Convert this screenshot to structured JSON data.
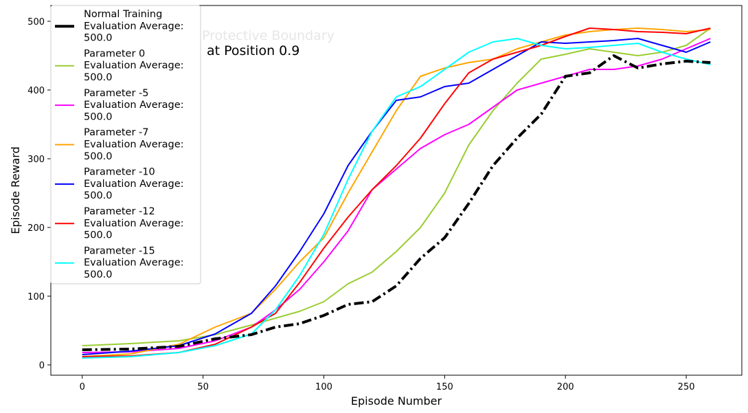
{
  "chart_data": {
    "type": "line",
    "title": "",
    "xlabel": "Episode Number",
    "ylabel": "Episode Reward",
    "xlim": [
      -13,
      273
    ],
    "ylim": [
      -15,
      523
    ],
    "xticks": [
      0,
      50,
      100,
      150,
      200,
      250
    ],
    "yticks": [
      0,
      100,
      200,
      300,
      400,
      500
    ],
    "grid": false,
    "legend_position": "upper-left",
    "annotations": [
      {
        "text": "Protective Boundary",
        "color": "#e6e6e6"
      },
      {
        "text": "at Position 0.9",
        "color": "#000000"
      }
    ],
    "series": [
      {
        "name": "Normal Training",
        "legend_lines": [
          "Normal Training",
          " Evaluation Average:",
          " 500.0"
        ],
        "color": "#000000",
        "style": "dashdot",
        "width": 4,
        "x": [
          0,
          20,
          40,
          55,
          70,
          80,
          90,
          100,
          110,
          120,
          130,
          140,
          150,
          160,
          170,
          180,
          190,
          200,
          210,
          220,
          230,
          240,
          250,
          260
        ],
        "y": [
          22,
          23,
          27,
          38,
          44,
          55,
          60,
          72,
          88,
          92,
          115,
          155,
          185,
          235,
          290,
          330,
          365,
          420,
          425,
          450,
          432,
          438,
          442,
          440
        ]
      },
      {
        "name": "Parameter 0",
        "legend_lines": [
          "Parameter 0",
          " Evaluation Average:",
          " 500.0"
        ],
        "color": "#9acd32",
        "style": "solid",
        "width": 2,
        "x": [
          0,
          20,
          40,
          55,
          70,
          80,
          90,
          100,
          110,
          120,
          130,
          140,
          150,
          160,
          170,
          180,
          190,
          200,
          210,
          220,
          230,
          240,
          250,
          260
        ],
        "y": [
          28,
          31,
          35,
          44,
          58,
          68,
          78,
          92,
          118,
          135,
          165,
          200,
          250,
          320,
          370,
          410,
          445,
          452,
          460,
          455,
          450,
          455,
          465,
          490
        ]
      },
      {
        "name": "Parameter -5",
        "legend_lines": [
          "Parameter -5",
          " Evaluation Average:",
          " 500.0"
        ],
        "color": "#ff00ff",
        "style": "solid",
        "width": 2,
        "x": [
          0,
          20,
          40,
          55,
          70,
          80,
          90,
          100,
          110,
          120,
          130,
          140,
          150,
          160,
          170,
          180,
          190,
          200,
          210,
          220,
          230,
          240,
          250,
          260
        ],
        "y": [
          18,
          19,
          24,
          35,
          55,
          80,
          110,
          150,
          195,
          255,
          285,
          315,
          335,
          350,
          375,
          400,
          410,
          420,
          430,
          430,
          435,
          445,
          460,
          475
        ]
      },
      {
        "name": "Parameter -7",
        "legend_lines": [
          "Parameter -7",
          " Evaluation Average:",
          " 500.0"
        ],
        "color": "#ffa500",
        "style": "solid",
        "width": 2,
        "x": [
          0,
          20,
          40,
          55,
          70,
          80,
          90,
          100,
          110,
          120,
          130,
          140,
          150,
          160,
          170,
          180,
          190,
          200,
          210,
          220,
          230,
          240,
          250,
          260
        ],
        "y": [
          12,
          16,
          30,
          55,
          75,
          110,
          150,
          185,
          250,
          310,
          370,
          420,
          432,
          440,
          445,
          460,
          470,
          480,
          485,
          488,
          490,
          488,
          485,
          488
        ]
      },
      {
        "name": "Parameter -10",
        "legend_lines": [
          "Parameter -10",
          " Evaluation Average:",
          " 500.0"
        ],
        "color": "#0000ff",
        "style": "solid",
        "width": 2,
        "x": [
          0,
          20,
          40,
          55,
          70,
          80,
          90,
          100,
          110,
          120,
          130,
          140,
          150,
          160,
          170,
          180,
          190,
          200,
          210,
          220,
          230,
          240,
          250,
          260
        ],
        "y": [
          15,
          20,
          28,
          45,
          75,
          115,
          165,
          220,
          290,
          340,
          385,
          390,
          405,
          410,
          430,
          450,
          470,
          468,
          470,
          472,
          475,
          465,
          455,
          470
        ]
      },
      {
        "name": "Parameter -12",
        "legend_lines": [
          "Parameter -12",
          " Evaluation Average:",
          " 500.0"
        ],
        "color": "#ff0000",
        "style": "solid",
        "width": 2,
        "x": [
          0,
          20,
          40,
          55,
          70,
          80,
          90,
          100,
          110,
          120,
          130,
          140,
          150,
          160,
          170,
          180,
          190,
          200,
          210,
          220,
          230,
          240,
          250,
          260
        ],
        "y": [
          12,
          13,
          18,
          30,
          55,
          75,
          120,
          170,
          215,
          255,
          290,
          330,
          380,
          425,
          445,
          455,
          465,
          478,
          490,
          488,
          485,
          484,
          482,
          490
        ]
      },
      {
        "name": "Parameter -15",
        "legend_lines": [
          "Parameter -15",
          " Evaluation Average:",
          " 500.0"
        ],
        "color": "#00ffff",
        "style": "solid",
        "width": 2,
        "x": [
          0,
          20,
          40,
          55,
          70,
          80,
          90,
          100,
          110,
          120,
          130,
          140,
          150,
          160,
          170,
          180,
          190,
          200,
          210,
          220,
          230,
          240,
          250,
          260
        ],
        "y": [
          10,
          12,
          18,
          28,
          45,
          80,
          130,
          190,
          270,
          340,
          390,
          405,
          430,
          455,
          470,
          475,
          465,
          460,
          462,
          465,
          468,
          455,
          445,
          437
        ]
      }
    ]
  }
}
